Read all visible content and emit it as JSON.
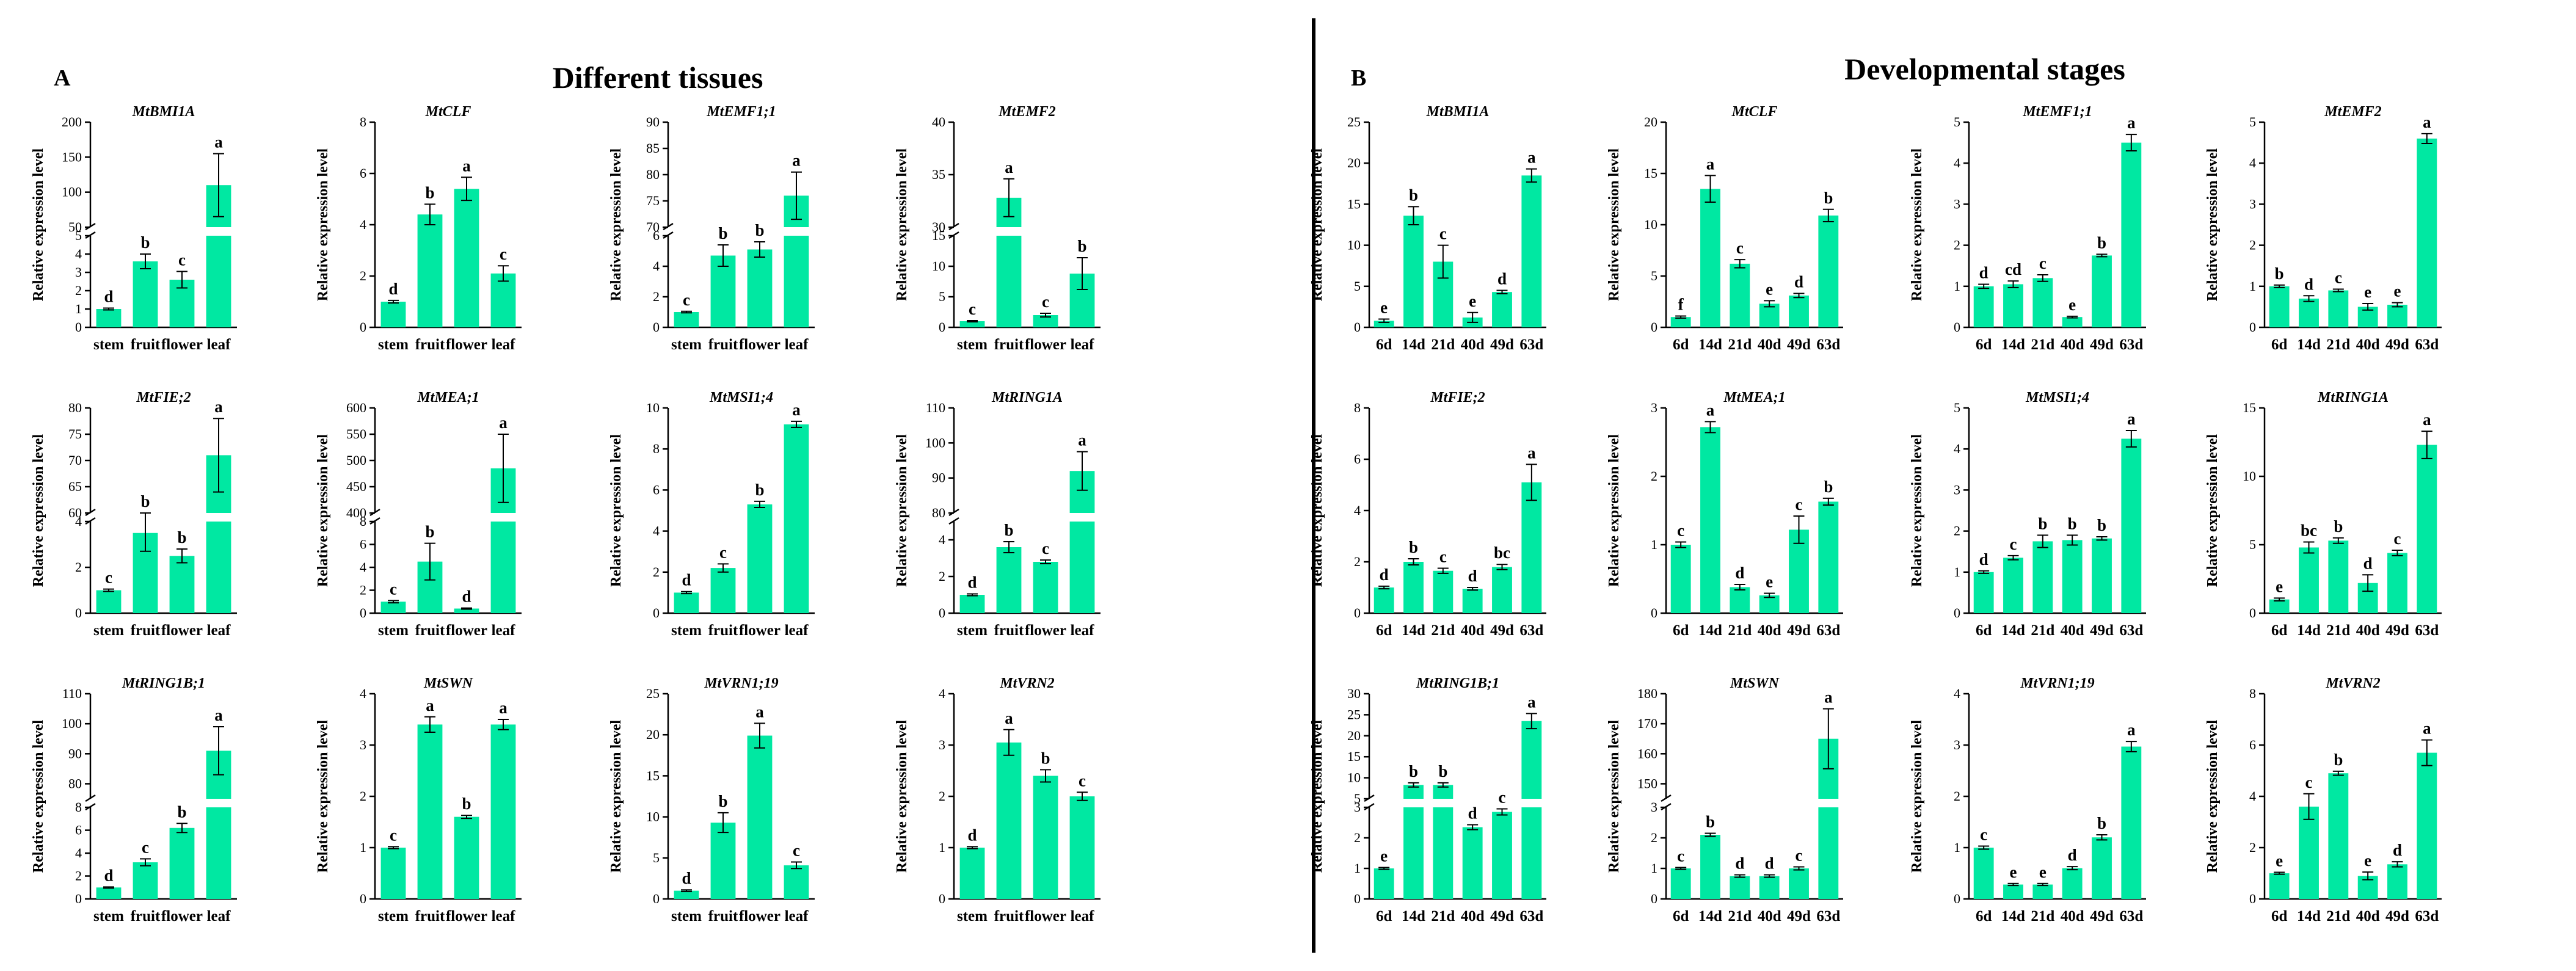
{
  "panels": [
    {
      "letter": "A",
      "title": "Different tissues"
    },
    {
      "letter": "B",
      "title": "Developmental stages"
    }
  ],
  "colors": {
    "bar": "#00e8a2",
    "axis": "#000000",
    "divider": "#000000"
  },
  "chart_data": [
    {
      "type": "bar",
      "panel": "A",
      "title": "MtBMI1A",
      "ylabel": "Relative expression level",
      "categories": [
        "stem",
        "fruit",
        "flower",
        "leaf"
      ],
      "values": [
        1.0,
        3.6,
        2.6,
        110
      ],
      "errors": [
        0.05,
        0.4,
        0.45,
        45
      ],
      "letters": [
        "d",
        "b",
        "c",
        "a"
      ],
      "axis_break": {
        "lower": [
          0,
          5
        ],
        "upper": [
          50,
          200
        ],
        "lower_ticks": [
          0,
          1,
          2,
          3,
          4,
          5
        ],
        "upper_ticks": [
          50,
          100,
          150,
          200
        ]
      }
    },
    {
      "type": "bar",
      "panel": "A",
      "title": "MtCLF",
      "ylabel": "Relative expression level",
      "categories": [
        "stem",
        "fruit",
        "flower",
        "leaf"
      ],
      "values": [
        1.0,
        4.4,
        5.4,
        2.1
      ],
      "errors": [
        0.05,
        0.4,
        0.45,
        0.3
      ],
      "letters": [
        "d",
        "b",
        "a",
        "c"
      ],
      "ylim": [
        0,
        8
      ],
      "yticks": [
        0,
        2,
        4,
        6,
        8
      ]
    },
    {
      "type": "bar",
      "panel": "A",
      "title": "MtEMF1;1",
      "ylabel": "Relative expression level",
      "categories": [
        "stem",
        "fruit",
        "flower",
        "leaf"
      ],
      "values": [
        1.0,
        4.7,
        5.1,
        76
      ],
      "errors": [
        0.05,
        0.7,
        0.5,
        4.5
      ],
      "letters": [
        "c",
        "b",
        "b",
        "a"
      ],
      "axis_break": {
        "lower": [
          0,
          6
        ],
        "upper": [
          70,
          90
        ],
        "lower_ticks": [
          0,
          2,
          4,
          6
        ],
        "upper_ticks": [
          70,
          75,
          80,
          85,
          90
        ]
      }
    },
    {
      "type": "bar",
      "panel": "A",
      "title": "MtEMF2",
      "ylabel": "Relative expression level",
      "categories": [
        "stem",
        "fruit",
        "flower",
        "leaf"
      ],
      "values": [
        1.0,
        32.8,
        2.0,
        8.8
      ],
      "errors": [
        0.1,
        1.8,
        0.3,
        2.6
      ],
      "letters": [
        "c",
        "a",
        "c",
        "b"
      ],
      "axis_break": {
        "lower": [
          0,
          15
        ],
        "upper": [
          30,
          40
        ],
        "lower_ticks": [
          0,
          5,
          10,
          15
        ],
        "upper_ticks": [
          30,
          35,
          40
        ]
      }
    },
    {
      "type": "bar",
      "panel": "A",
      "title": "MtFIE;2",
      "ylabel": "Relative expression level",
      "categories": [
        "stem",
        "fruit",
        "flower",
        "leaf"
      ],
      "values": [
        1.0,
        3.5,
        2.5,
        71
      ],
      "errors": [
        0.05,
        0.8,
        0.3,
        7
      ],
      "letters": [
        "c",
        "b",
        "b",
        "a"
      ],
      "axis_break": {
        "lower": [
          0,
          4
        ],
        "upper": [
          60,
          80
        ],
        "lower_ticks": [
          0,
          2,
          4
        ],
        "upper_ticks": [
          60,
          65,
          70,
          75,
          80
        ]
      }
    },
    {
      "type": "bar",
      "panel": "A",
      "title": "MtMEA;1",
      "ylabel": "Relative expression level",
      "categories": [
        "stem",
        "fruit",
        "flower",
        "leaf"
      ],
      "values": [
        1.0,
        4.5,
        0.4,
        485
      ],
      "errors": [
        0.1,
        1.6,
        0.05,
        65
      ],
      "letters": [
        "c",
        "b",
        "d",
        "a"
      ],
      "axis_break": {
        "lower": [
          0,
          8
        ],
        "upper": [
          400,
          600
        ],
        "lower_ticks": [
          0,
          2,
          4,
          6,
          8
        ],
        "upper_ticks": [
          400,
          450,
          500,
          550,
          600
        ]
      }
    },
    {
      "type": "bar",
      "panel": "A",
      "title": "MtMSI1;4",
      "ylabel": "Relative expression level",
      "categories": [
        "stem",
        "fruit",
        "flower",
        "leaf"
      ],
      "values": [
        1.0,
        2.2,
        5.3,
        9.2
      ],
      "errors": [
        0.05,
        0.2,
        0.15,
        0.15
      ],
      "letters": [
        "d",
        "c",
        "b",
        "a"
      ],
      "ylim": [
        0,
        10
      ],
      "yticks": [
        0,
        2,
        4,
        6,
        8,
        10
      ]
    },
    {
      "type": "bar",
      "panel": "A",
      "title": "MtRING1A",
      "ylabel": "Relative expression level",
      "categories": [
        "stem",
        "fruit",
        "flower",
        "leaf"
      ],
      "values": [
        1.0,
        3.6,
        2.8,
        92
      ],
      "errors": [
        0.05,
        0.3,
        0.1,
        5.5
      ],
      "letters": [
        "d",
        "b",
        "c",
        "a"
      ],
      "axis_break": {
        "lower": [
          0,
          5
        ],
        "upper": [
          80,
          110
        ],
        "lower_ticks": [
          0,
          2,
          4
        ],
        "upper_ticks": [
          80,
          90,
          100,
          110
        ]
      }
    },
    {
      "type": "bar",
      "panel": "A",
      "title": "MtRING1B;1",
      "ylabel": "Relative expression level",
      "categories": [
        "stem",
        "fruit",
        "flower",
        "leaf"
      ],
      "values": [
        1.0,
        3.2,
        6.2,
        91
      ],
      "errors": [
        0.05,
        0.3,
        0.4,
        8
      ],
      "letters": [
        "d",
        "c",
        "b",
        "a"
      ],
      "axis_break": {
        "lower": [
          0,
          8
        ],
        "upper": [
          75,
          110
        ],
        "lower_ticks": [
          0,
          2,
          4,
          6,
          8
        ],
        "upper_ticks": [
          80,
          90,
          100,
          110
        ]
      }
    },
    {
      "type": "bar",
      "panel": "A",
      "title": "MtSWN",
      "ylabel": "Relative expression level",
      "categories": [
        "stem",
        "fruit",
        "flower",
        "leaf"
      ],
      "values": [
        1.0,
        3.4,
        1.6,
        3.4
      ],
      "errors": [
        0.02,
        0.15,
        0.03,
        0.1
      ],
      "letters": [
        "c",
        "a",
        "b",
        "a"
      ],
      "ylim": [
        0,
        4
      ],
      "yticks": [
        0,
        1,
        2,
        3,
        4
      ]
    },
    {
      "type": "bar",
      "panel": "A",
      "title": "MtVRN1;19",
      "ylabel": "Relative expression level",
      "categories": [
        "stem",
        "fruit",
        "flower",
        "leaf"
      ],
      "values": [
        1.0,
        9.3,
        19.9,
        4.1
      ],
      "errors": [
        0.1,
        1.2,
        1.5,
        0.4
      ],
      "letters": [
        "d",
        "b",
        "a",
        "c"
      ],
      "ylim": [
        0,
        25
      ],
      "yticks": [
        0,
        5,
        10,
        15,
        20,
        25
      ]
    },
    {
      "type": "bar",
      "panel": "A",
      "title": "MtVRN2",
      "ylabel": "Relative expression level",
      "categories": [
        "stem",
        "fruit",
        "flower",
        "leaf"
      ],
      "values": [
        1.0,
        3.05,
        2.4,
        2.0
      ],
      "errors": [
        0.02,
        0.25,
        0.12,
        0.08
      ],
      "letters": [
        "d",
        "a",
        "b",
        "c"
      ],
      "ylim": [
        0,
        4
      ],
      "yticks": [
        0,
        1,
        2,
        3,
        4
      ]
    },
    {
      "type": "bar",
      "panel": "B",
      "title": "MtBMI1A",
      "ylabel": "Relative expression level",
      "categories": [
        "6d",
        "14d",
        "21d",
        "40d",
        "49d",
        "63d"
      ],
      "values": [
        0.8,
        13.6,
        8.0,
        1.2,
        4.3,
        18.5
      ],
      "errors": [
        0.2,
        1.1,
        2.0,
        0.6,
        0.2,
        0.8
      ],
      "letters": [
        "e",
        "b",
        "c",
        "e",
        "d",
        "a"
      ],
      "ylim": [
        0,
        25
      ],
      "yticks": [
        0,
        5,
        10,
        15,
        20,
        25
      ]
    },
    {
      "type": "bar",
      "panel": "B",
      "title": "MtCLF",
      "ylabel": "Relative expression level",
      "categories": [
        "6d",
        "14d",
        "21d",
        "40d",
        "49d",
        "63d"
      ],
      "values": [
        1.0,
        13.5,
        6.2,
        2.3,
        3.1,
        10.9
      ],
      "errors": [
        0.1,
        1.3,
        0.4,
        0.3,
        0.2,
        0.6
      ],
      "letters": [
        "f",
        "a",
        "c",
        "e",
        "d",
        "b"
      ],
      "ylim": [
        0,
        20
      ],
      "yticks": [
        0,
        5,
        10,
        15,
        20
      ]
    },
    {
      "type": "bar",
      "panel": "B",
      "title": "MtEMF1;1",
      "ylabel": "Relative expression level",
      "categories": [
        "6d",
        "14d",
        "21d",
        "40d",
        "49d",
        "63d"
      ],
      "values": [
        1.0,
        1.05,
        1.2,
        0.25,
        1.75,
        4.5
      ],
      "errors": [
        0.05,
        0.08,
        0.08,
        0.02,
        0.03,
        0.2
      ],
      "letters": [
        "d",
        "cd",
        "c",
        "e",
        "b",
        "a"
      ],
      "ylim": [
        0,
        5
      ],
      "yticks": [
        0,
        1,
        2,
        3,
        4,
        5
      ]
    },
    {
      "type": "bar",
      "panel": "B",
      "title": "MtEMF2",
      "ylabel": "Relative expression level",
      "categories": [
        "6d",
        "14d",
        "21d",
        "40d",
        "49d",
        "63d"
      ],
      "values": [
        1.0,
        0.7,
        0.9,
        0.5,
        0.55,
        4.6
      ],
      "errors": [
        0.03,
        0.07,
        0.03,
        0.08,
        0.05,
        0.12
      ],
      "letters": [
        "b",
        "d",
        "c",
        "e",
        "e",
        "a"
      ],
      "ylim": [
        0,
        5
      ],
      "yticks": [
        0,
        1,
        2,
        3,
        4,
        5
      ]
    },
    {
      "type": "bar",
      "panel": "B",
      "title": "MtFIE;2",
      "ylabel": "Relative expression level",
      "categories": [
        "6d",
        "14d",
        "21d",
        "40d",
        "49d",
        "63d"
      ],
      "values": [
        1.0,
        2.0,
        1.65,
        0.95,
        1.8,
        5.1
      ],
      "errors": [
        0.05,
        0.12,
        0.1,
        0.05,
        0.1,
        0.7
      ],
      "letters": [
        "d",
        "b",
        "c",
        "d",
        "bc",
        "a"
      ],
      "ylim": [
        0,
        8
      ],
      "yticks": [
        0,
        2,
        4,
        6,
        8
      ]
    },
    {
      "type": "bar",
      "panel": "B",
      "title": "MtMEA;1",
      "ylabel": "Relative expression level",
      "categories": [
        "6d",
        "14d",
        "21d",
        "40d",
        "49d",
        "63d"
      ],
      "values": [
        1.0,
        2.72,
        0.38,
        0.26,
        1.22,
        1.63
      ],
      "errors": [
        0.04,
        0.08,
        0.04,
        0.03,
        0.2,
        0.05
      ],
      "letters": [
        "c",
        "a",
        "d",
        "e",
        "c",
        "b"
      ],
      "ylim": [
        0,
        3
      ],
      "yticks": [
        0,
        1,
        2,
        3
      ]
    },
    {
      "type": "bar",
      "panel": "B",
      "title": "MtMSI1;4",
      "ylabel": "Relative expression level",
      "categories": [
        "6d",
        "14d",
        "21d",
        "40d",
        "49d",
        "63d"
      ],
      "values": [
        1.0,
        1.35,
        1.75,
        1.78,
        1.82,
        4.25
      ],
      "errors": [
        0.03,
        0.05,
        0.15,
        0.12,
        0.04,
        0.2
      ],
      "letters": [
        "d",
        "c",
        "b",
        "b",
        "b",
        "a"
      ],
      "ylim": [
        0,
        5
      ],
      "yticks": [
        0,
        1,
        2,
        3,
        4,
        5
      ]
    },
    {
      "type": "bar",
      "panel": "B",
      "title": "MtRING1A",
      "ylabel": "Relative expression level",
      "categories": [
        "6d",
        "14d",
        "21d",
        "40d",
        "49d",
        "63d"
      ],
      "values": [
        1.0,
        4.8,
        5.3,
        2.2,
        4.4,
        12.3
      ],
      "errors": [
        0.1,
        0.4,
        0.2,
        0.6,
        0.2,
        1.0
      ],
      "letters": [
        "e",
        "bc",
        "b",
        "d",
        "c",
        "a"
      ],
      "ylim": [
        0,
        15
      ],
      "yticks": [
        0,
        5,
        10,
        15
      ]
    },
    {
      "type": "bar",
      "panel": "B",
      "title": "MtRING1B;1",
      "ylabel": "Relative expression level",
      "categories": [
        "6d",
        "14d",
        "21d",
        "40d",
        "49d",
        "63d"
      ],
      "values": [
        1.0,
        8.3,
        8.3,
        2.35,
        2.85,
        23.5
      ],
      "errors": [
        0.03,
        0.5,
        0.5,
        0.08,
        0.1,
        1.8
      ],
      "letters": [
        "e",
        "b",
        "b",
        "d",
        "c",
        "a"
      ],
      "axis_break": {
        "lower": [
          0,
          3
        ],
        "upper": [
          5,
          30
        ],
        "lower_ticks": [
          0,
          1,
          2,
          3
        ],
        "upper_ticks": [
          5,
          10,
          15,
          20,
          25,
          30
        ]
      }
    },
    {
      "type": "bar",
      "panel": "B",
      "title": "MtSWN",
      "ylabel": "Relative expression level",
      "categories": [
        "6d",
        "14d",
        "21d",
        "40d",
        "49d",
        "63d"
      ],
      "values": [
        1.0,
        2.1,
        0.75,
        0.75,
        1.0,
        165
      ],
      "errors": [
        0.03,
        0.05,
        0.04,
        0.04,
        0.05,
        10
      ],
      "letters": [
        "c",
        "b",
        "d",
        "d",
        "c",
        "a"
      ],
      "axis_break": {
        "lower": [
          0,
          3
        ],
        "upper": [
          145,
          180
        ],
        "lower_ticks": [
          0,
          1,
          2,
          3
        ],
        "upper_ticks": [
          150,
          160,
          170,
          180
        ]
      }
    },
    {
      "type": "bar",
      "panel": "B",
      "title": "MtVRN1;19",
      "ylabel": "Relative expression level",
      "categories": [
        "6d",
        "14d",
        "21d",
        "40d",
        "49d",
        "63d"
      ],
      "values": [
        1.0,
        0.28,
        0.28,
        0.6,
        1.2,
        2.97
      ],
      "errors": [
        0.03,
        0.02,
        0.02,
        0.03,
        0.05,
        0.1
      ],
      "letters": [
        "c",
        "e",
        "e",
        "d",
        "b",
        "a"
      ],
      "ylim": [
        0,
        4
      ],
      "yticks": [
        0,
        1,
        2,
        3,
        4
      ]
    },
    {
      "type": "bar",
      "panel": "B",
      "title": "MtVRN2",
      "ylabel": "Relative expression level",
      "categories": [
        "6d",
        "14d",
        "21d",
        "40d",
        "49d",
        "63d"
      ],
      "values": [
        1.0,
        3.6,
        4.9,
        0.9,
        1.35,
        5.7
      ],
      "errors": [
        0.04,
        0.5,
        0.08,
        0.15,
        0.1,
        0.5
      ],
      "letters": [
        "e",
        "c",
        "b",
        "e",
        "d",
        "a"
      ],
      "ylim": [
        0,
        8
      ],
      "yticks": [
        0,
        2,
        4,
        6,
        8
      ]
    }
  ]
}
